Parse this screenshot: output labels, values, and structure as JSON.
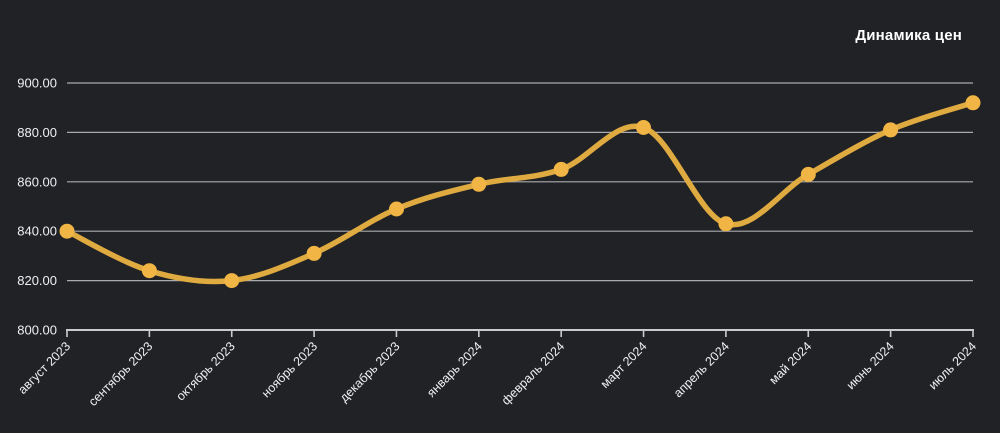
{
  "title": "Динамика цен",
  "colors": {
    "background": "#212226",
    "line": "#DFAB40",
    "point": "#F0B544",
    "grid": "#A9ABAF",
    "axis": "#C9CBCE",
    "axis_label": "#EEF0F1",
    "title_text": "#FFFFFF"
  },
  "chart_data": {
    "type": "line",
    "title": "Динамика цен",
    "smooth": true,
    "grid": true,
    "legend": "none",
    "categories": [
      "август 2023",
      "сентябрь 2023",
      "октябрь 2023",
      "ноябрь 2023",
      "декабрь 2023",
      "январь 2024",
      "февраль 2024",
      "март 2024",
      "апрель 2024",
      "май 2024",
      "июнь 2024",
      "июль 2024"
    ],
    "values": [
      840,
      824,
      820,
      831,
      849,
      859,
      865,
      882,
      843,
      863,
      881,
      892
    ],
    "xlabel": "",
    "ylabel": "",
    "ylim": [
      800,
      900
    ],
    "ytick_values": [
      800,
      820,
      840,
      860,
      880,
      900
    ],
    "ytick_labels": [
      "800.00",
      "820.00",
      "840.00",
      "860.00",
      "880.00",
      "900.00"
    ]
  }
}
